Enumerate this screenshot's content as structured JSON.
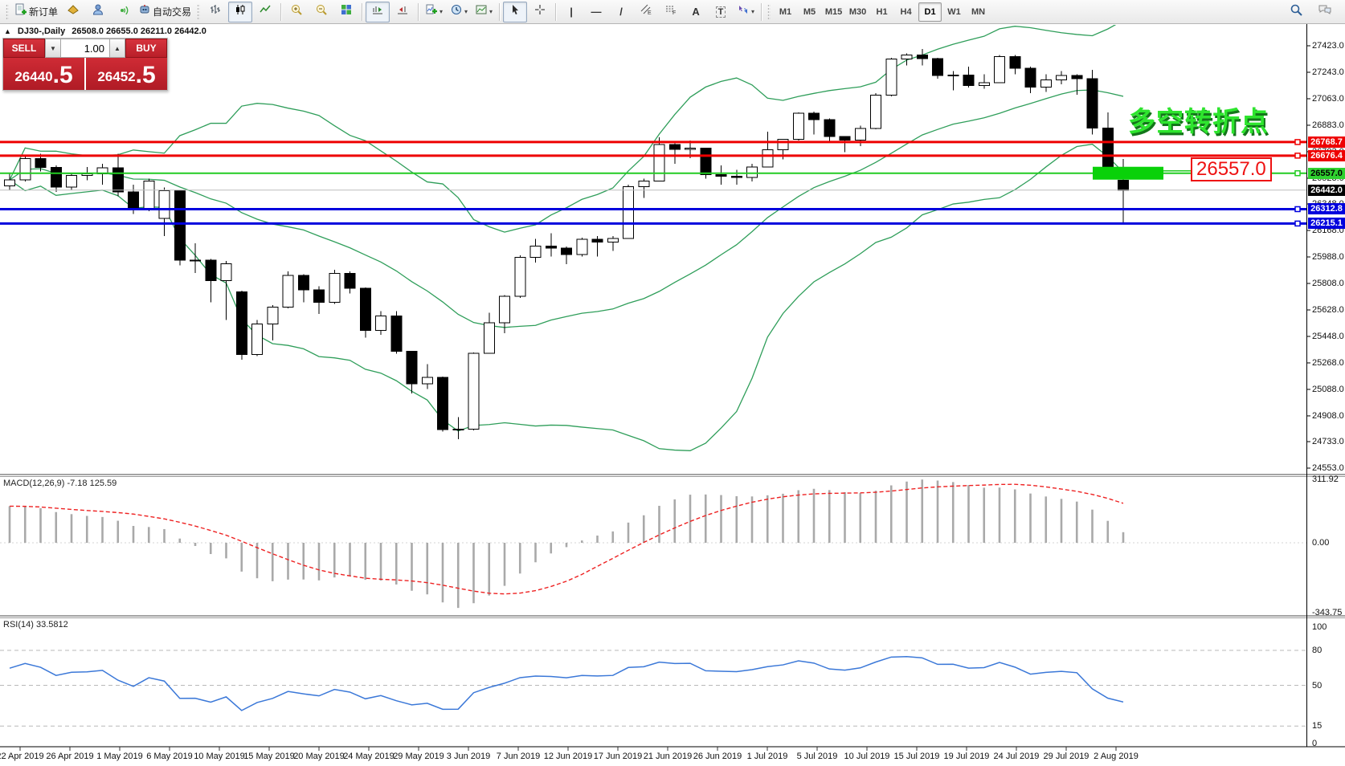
{
  "toolbar": {
    "new_order": "新订单",
    "auto_trading": "自动交易",
    "timeframes": [
      "M1",
      "M5",
      "M15",
      "M30",
      "H1",
      "H4",
      "D1",
      "W1",
      "MN"
    ],
    "active_timeframe": "D1",
    "glyph_vline": "|",
    "glyph_hline": "—",
    "glyph_trendline": "/",
    "glyph_channel": "E",
    "glyph_fibo": "F",
    "glyph_text": "A",
    "glyph_label": "T"
  },
  "symbol_bar": {
    "collapse": "▲",
    "title": "DJ30-,Daily",
    "ohlc": "26508.0 26655.0 26211.0 26442.0"
  },
  "trade_panel": {
    "sell_label": "SELL",
    "buy_label": "BUY",
    "volume": "1.00",
    "sell_price": {
      "main": "26440",
      "frac": ".5"
    },
    "buy_price": {
      "main": "26452",
      "frac": ".5"
    }
  },
  "price_axis": {
    "ticks": [
      "27423.0",
      "27243.0",
      "27063.0",
      "26883.0",
      "26703.0",
      "26523.0",
      "26348.0",
      "26168.0",
      "25988.0",
      "25808.0",
      "25628.0",
      "25448.0",
      "25268.0",
      "25088.0",
      "24908.0",
      "24733.0",
      "24553.0"
    ],
    "tags": [
      {
        "text": "26768.7",
        "bg": "#ee0000",
        "fg": "#ffffff"
      },
      {
        "text": "26676.4",
        "bg": "#ee0000",
        "fg": "#ffffff"
      },
      {
        "text": "26557.0",
        "bg": "#2fd12f",
        "fg": "#000000"
      },
      {
        "text": "26442.0",
        "bg": "#000000",
        "fg": "#ffffff"
      },
      {
        "text": "26312.8",
        "bg": "#0000dd",
        "fg": "#ffffff"
      },
      {
        "text": "26215.1",
        "bg": "#0000dd",
        "fg": "#ffffff"
      }
    ]
  },
  "hlines": [
    {
      "price": 26768.7,
      "color": "#ee0000",
      "width": 3,
      "marker": true
    },
    {
      "price": 26676.4,
      "color": "#ee0000",
      "width": 3,
      "marker": true
    },
    {
      "price": 26557.0,
      "color": "#22cc22",
      "width": 2,
      "marker": true
    },
    {
      "price": 26442.0,
      "color": "#bdbdbd",
      "width": 1,
      "marker": false
    },
    {
      "price": 26312.8,
      "color": "#0000dd",
      "width": 3,
      "marker": true
    },
    {
      "price": 26215.1,
      "color": "#0000dd",
      "width": 3,
      "marker": true
    }
  ],
  "annotation": {
    "text": "多空转折点",
    "color": "#2ee52e",
    "shadow": "#13761a"
  },
  "callout": {
    "text": "26557.0",
    "color": "#ee1111"
  },
  "highlight": {
    "color": "#09d109",
    "price": 26557.0
  },
  "macd_panel": {
    "label": "MACD(12,26,9) -7.18 125.59",
    "axis": [
      {
        "text": "311.92",
        "v": 311.92
      },
      {
        "text": "0.00",
        "v": 0
      },
      {
        "text": "-343.75",
        "v": -343.75
      }
    ]
  },
  "rsi_panel": {
    "label": "RSI(14) 33.5812",
    "axis": [
      {
        "text": "100",
        "v": 100
      },
      {
        "text": "80",
        "v": 80
      },
      {
        "text": "50",
        "v": 50
      },
      {
        "text": "15",
        "v": 15
      },
      {
        "text": "0",
        "v": 0
      }
    ],
    "levels": [
      80,
      50,
      15
    ]
  },
  "date_axis": [
    "22 Apr 2019",
    "26 Apr 2019",
    "1 May 2019",
    "6 May 2019",
    "10 May 2019",
    "15 May 2019",
    "20 May 2019",
    "24 May 2019",
    "29 May 2019",
    "3 Jun 2019",
    "7 Jun 2019",
    "12 Jun 2019",
    "17 Jun 2019",
    "21 Jun 2019",
    "26 Jun 2019",
    "1 Jul 2019",
    "5 Jul 2019",
    "10 Jul 2019",
    "15 Jul 2019",
    "19 Jul 2019",
    "24 Jul 2019",
    "29 Jul 2019",
    "2 Aug 2019"
  ],
  "chart_data": {
    "type": "candlestick",
    "symbol": "DJ30-",
    "period": "Daily",
    "last_ohlc": [
      26508.0,
      26655.0,
      26211.0,
      26442.0
    ],
    "price_range": [
      24553.0,
      27423.0
    ],
    "candles": [
      [
        26470,
        26560,
        26440,
        26511
      ],
      [
        26511,
        26680,
        26500,
        26656
      ],
      [
        26656,
        26690,
        26570,
        26597
      ],
      [
        26597,
        26610,
        26430,
        26462
      ],
      [
        26462,
        26560,
        26440,
        26543
      ],
      [
        26543,
        26600,
        26510,
        26554
      ],
      [
        26554,
        26620,
        26480,
        26593
      ],
      [
        26593,
        26690,
        26400,
        26430
      ],
      [
        26430,
        26480,
        26280,
        26308
      ],
      [
        26308,
        26520,
        26300,
        26505
      ],
      [
        26250,
        26460,
        26130,
        26438
      ],
      [
        26438,
        26440,
        25930,
        25965
      ],
      [
        25965,
        26080,
        25880,
        25967
      ],
      [
        25967,
        25975,
        25680,
        25828
      ],
      [
        25828,
        25960,
        25560,
        25942
      ],
      [
        25750,
        25760,
        25290,
        25325
      ],
      [
        25325,
        25560,
        25315,
        25532
      ],
      [
        25532,
        25660,
        25420,
        25648
      ],
      [
        25648,
        25890,
        25640,
        25862
      ],
      [
        25862,
        25870,
        25680,
        25764
      ],
      [
        25764,
        25790,
        25600,
        25680
      ],
      [
        25680,
        25900,
        25670,
        25877
      ],
      [
        25877,
        25890,
        25740,
        25776
      ],
      [
        25776,
        25780,
        25440,
        25490
      ],
      [
        25490,
        25620,
        25460,
        25586
      ],
      [
        25586,
        25620,
        25330,
        25348
      ],
      [
        25348,
        25350,
        25060,
        25126
      ],
      [
        25126,
        25260,
        25090,
        25170
      ],
      [
        25170,
        25175,
        24800,
        24815
      ],
      [
        24815,
        24900,
        24750,
        24819
      ],
      [
        24819,
        25340,
        24810,
        25332
      ],
      [
        25332,
        25610,
        25330,
        25540
      ],
      [
        25540,
        25730,
        25470,
        25721
      ],
      [
        25721,
        26000,
        25710,
        25984
      ],
      [
        25984,
        26110,
        25950,
        26063
      ],
      [
        26063,
        26150,
        25990,
        26049
      ],
      [
        26049,
        26060,
        25940,
        26004
      ],
      [
        26004,
        26120,
        25990,
        26107
      ],
      [
        26107,
        26130,
        25990,
        26090
      ],
      [
        26090,
        26130,
        26030,
        26113
      ],
      [
        26113,
        26480,
        26110,
        26466
      ],
      [
        26466,
        26520,
        26390,
        26504
      ],
      [
        26504,
        26800,
        26500,
        26753
      ],
      [
        26753,
        26760,
        26620,
        26719
      ],
      [
        26719,
        26780,
        26660,
        26728
      ],
      [
        26728,
        26730,
        26520,
        26548
      ],
      [
        26548,
        26610,
        26480,
        26536
      ],
      [
        26536,
        26580,
        26480,
        26527
      ],
      [
        26527,
        26620,
        26500,
        26600
      ],
      [
        26600,
        26840,
        26600,
        26717
      ],
      [
        26717,
        26790,
        26650,
        26787
      ],
      [
        26787,
        26970,
        26780,
        26966
      ],
      [
        26966,
        26975,
        26820,
        26922
      ],
      [
        26922,
        26930,
        26770,
        26806
      ],
      [
        26806,
        26810,
        26700,
        26783
      ],
      [
        26783,
        26880,
        26740,
        26860
      ],
      [
        26860,
        27100,
        26855,
        27088
      ],
      [
        27088,
        27340,
        27080,
        27332
      ],
      [
        27332,
        27370,
        27290,
        27359
      ],
      [
        27359,
        27400,
        27290,
        27336
      ],
      [
        27336,
        27340,
        27200,
        27220
      ],
      [
        27220,
        27250,
        27120,
        27223
      ],
      [
        27223,
        27280,
        27140,
        27154
      ],
      [
        27154,
        27230,
        27130,
        27172
      ],
      [
        27172,
        27360,
        27170,
        27349
      ],
      [
        27349,
        27360,
        27230,
        27270
      ],
      [
        27270,
        27280,
        27100,
        27141
      ],
      [
        27141,
        27230,
        27110,
        27192
      ],
      [
        27192,
        27250,
        27160,
        27221
      ],
      [
        27221,
        27230,
        27090,
        27198
      ],
      [
        27198,
        27260,
        26820,
        26864
      ],
      [
        26864,
        26970,
        26540,
        26583
      ],
      [
        26508,
        26655,
        26211,
        26442
      ]
    ],
    "indicators": [
      {
        "name": "Bollinger Bands",
        "period": 20,
        "deviation": 2,
        "color": "#2f9e5a"
      },
      {
        "name": "MACD",
        "fast": 12,
        "slow": 26,
        "signal": 9,
        "value": -7.18,
        "signal_value": 125.59,
        "histogram_color": "#a9a9a9",
        "signal_color": "#ee2222",
        "range": [
          -343.75,
          311.92
        ]
      },
      {
        "name": "RSI",
        "period": 14,
        "value": 33.5812,
        "color": "#3b78d8",
        "levels": [
          15,
          50,
          80
        ]
      }
    ]
  }
}
